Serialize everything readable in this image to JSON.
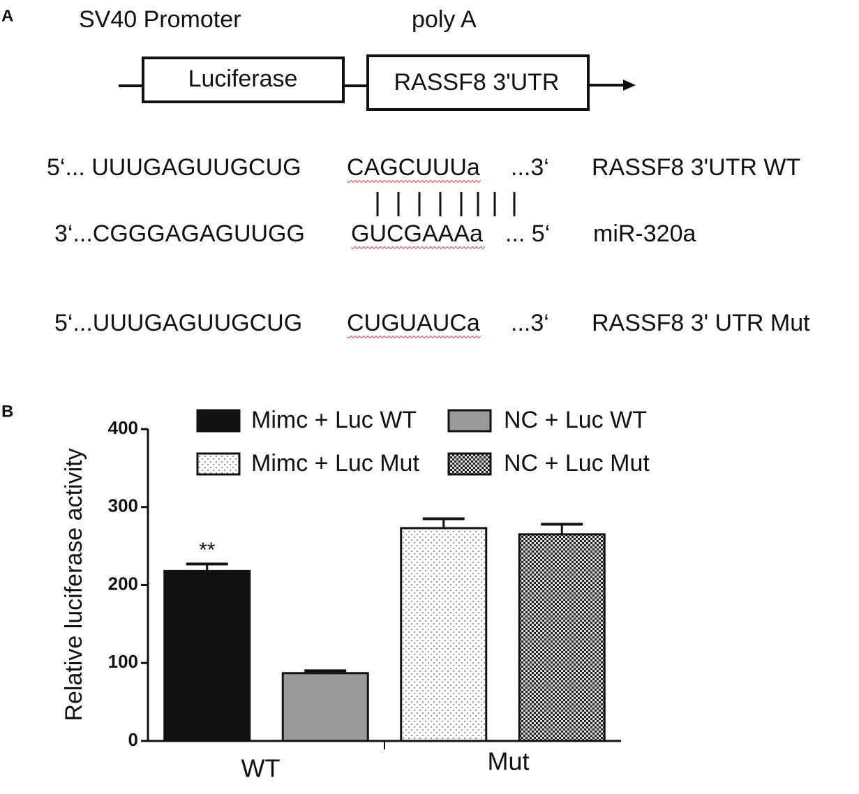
{
  "panel_a": {
    "label": "A",
    "promoter": "SV40 Promoter",
    "poly_a": "poly A",
    "boxes": [
      "Luciferase",
      "RASSF8 3'UTR"
    ],
    "sequences": [
      {
        "prefix": "5‘... UUUGAGUUGCUG",
        "site": "CAGCUUUa",
        "suffix": "...3‘",
        "name": "RASSF8 3'UTR WT"
      },
      {
        "prefix": "3‘...CGGGAGAGUUGG",
        "site": "GUCGAAAa",
        "suffix": "... 5‘",
        "name": "miR-320a"
      },
      {
        "prefix": "5‘...UUUGAGUUGCUG",
        "site": "CUGUAUCa",
        "suffix": "...3‘",
        "name": "RASSF8 3' UTR Mut"
      }
    ]
  },
  "panel_b_label": "B",
  "chart_data": {
    "type": "bar",
    "y_label": "Relative luciferase activity",
    "categories": [
      "WT",
      "Mut"
    ],
    "series": [
      {
        "name": "Mimc + Luc WT",
        "color": "#111111",
        "pattern": "solid",
        "values": [
          218,
          null
        ],
        "errors": [
          9,
          null
        ]
      },
      {
        "name": "NC + Luc WT",
        "color": "#9a9a9a",
        "pattern": "solid",
        "values": [
          87,
          null
        ],
        "errors": [
          3,
          null
        ]
      },
      {
        "name": "Mimc + Luc Mut",
        "color": "#ffffff",
        "pattern": "dots",
        "values": [
          null,
          273
        ],
        "errors": [
          null,
          12
        ]
      },
      {
        "name": "NC + Luc Mut",
        "color": "#222222",
        "pattern": "checker",
        "values": [
          null,
          265
        ],
        "errors": [
          null,
          13
        ]
      }
    ],
    "annotations": [
      {
        "text": "**",
        "series": 0,
        "category": 0
      }
    ],
    "ylim": [
      0,
      400
    ],
    "yticks": [
      0,
      100,
      200,
      300,
      400
    ],
    "legend": "top",
    "grid": false
  }
}
